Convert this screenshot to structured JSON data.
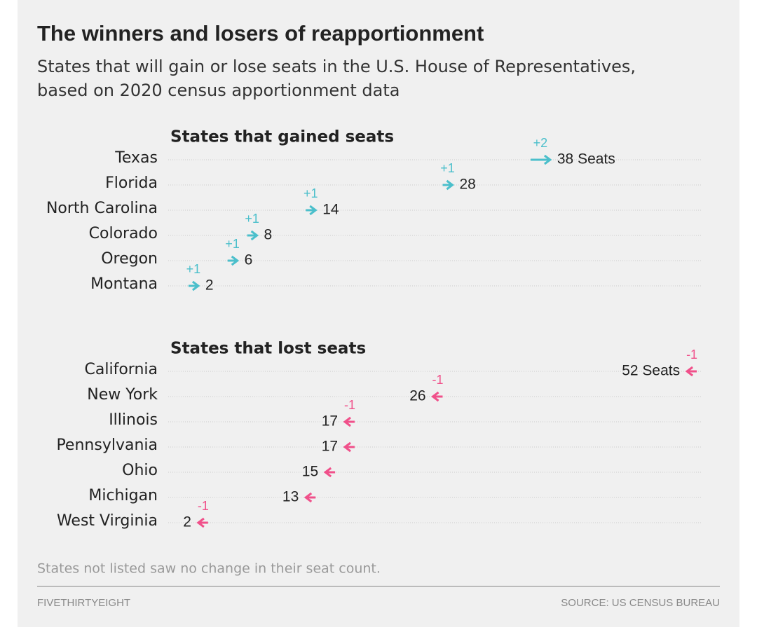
{
  "title": "The winners and losers of reapportionment",
  "subtitle": [
    "States that will gain or lose seats in the U.S. House of Representatives,",
    "based on 2020 census apportionment data"
  ],
  "note": "States not listed saw no change in their seat count.",
  "credit": "FIVETHIRTYEIGHT",
  "source": "SOURCE: US CENSUS BUREAU",
  "chart_data": [
    {
      "type": "arrow",
      "title": "States that gained seats",
      "categories": [
        "Texas",
        "Florida",
        "North Carolina",
        "Colorado",
        "Oregon",
        "Montana"
      ],
      "start": [
        36,
        27,
        13,
        7,
        5,
        1
      ],
      "values": [
        38,
        28,
        14,
        8,
        6,
        2
      ],
      "value_labels": [
        "38 Seats",
        "28",
        "14",
        "8",
        "6",
        "2"
      ],
      "change_labels": [
        "+2",
        "+1",
        "+1",
        "+1",
        "+1",
        "+1"
      ],
      "color": "#4bbfcb",
      "xlim": [
        0,
        54
      ]
    },
    {
      "type": "arrow",
      "title": "States that lost seats",
      "categories": [
        "California",
        "New York",
        "Illinois",
        "Pennsylvania",
        "Ohio",
        "Michigan",
        "West Virginia"
      ],
      "start": [
        53,
        27,
        18,
        18,
        16,
        14,
        3
      ],
      "values": [
        52,
        26,
        17,
        17,
        15,
        13,
        2
      ],
      "value_labels": [
        "52 Seats",
        "26",
        "17",
        "17",
        "15",
        "13",
        "2"
      ],
      "change_labels": [
        "-1",
        "-1",
        "-1",
        null,
        null,
        null,
        "-1"
      ],
      "color": "#f0508a",
      "xlim": [
        0,
        54
      ]
    }
  ]
}
